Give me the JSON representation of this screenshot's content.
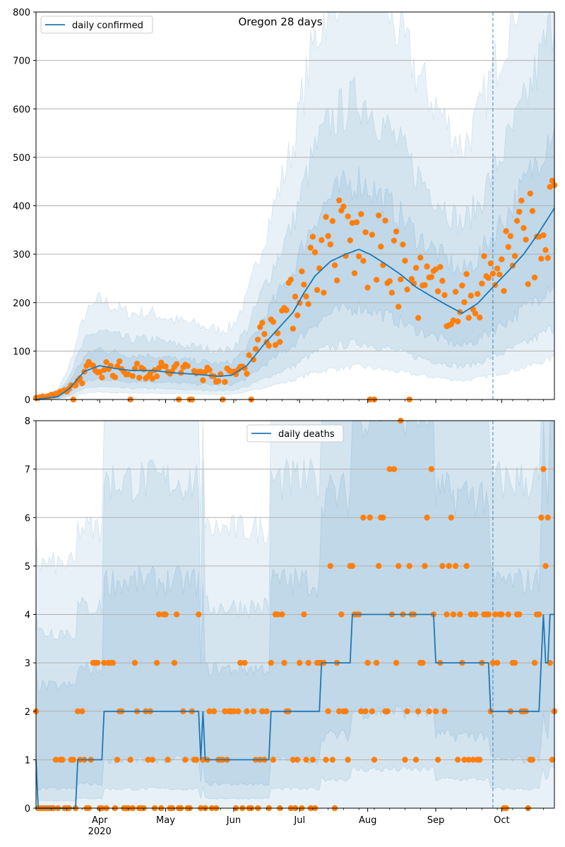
{
  "chart_data": [
    {
      "type": "line",
      "title": "Oregon 28 days",
      "legend": {
        "labels": [
          "daily confirmed"
        ],
        "placement": "upper-left"
      },
      "colors": {
        "line": "#1f77b4",
        "points": "#ff7f0e",
        "band": "#1f77b4"
      },
      "x_range": [
        "2020-03-03",
        "2020-10-25"
      ],
      "ylim": [
        0,
        800
      ],
      "y_ticks": [
        0,
        100,
        200,
        300,
        400,
        500,
        600,
        700,
        800
      ],
      "grid": true,
      "vline_date": "2020-09-27",
      "line_anchors": [
        [
          "2020-03-03",
          0
        ],
        [
          "2020-03-13",
          6
        ],
        [
          "2020-03-18",
          22
        ],
        [
          "2020-03-25",
          58
        ],
        [
          "2020-04-01",
          70
        ],
        [
          "2020-04-08",
          64
        ],
        [
          "2020-04-15",
          60
        ],
        [
          "2020-04-25",
          60
        ],
        [
          "2020-05-05",
          55
        ],
        [
          "2020-05-15",
          52
        ],
        [
          "2020-05-25",
          48
        ],
        [
          "2020-05-31",
          50
        ],
        [
          "2020-06-07",
          70
        ],
        [
          "2020-06-15",
          115
        ],
        [
          "2020-06-22",
          150
        ],
        [
          "2020-06-28",
          180
        ],
        [
          "2020-07-03",
          220
        ],
        [
          "2020-07-08",
          255
        ],
        [
          "2020-07-15",
          285
        ],
        [
          "2020-07-22",
          300
        ],
        [
          "2020-07-28",
          310
        ],
        [
          "2020-08-02",
          300
        ],
        [
          "2020-08-09",
          280
        ],
        [
          "2020-08-16",
          258
        ],
        [
          "2020-08-23",
          232
        ],
        [
          "2020-08-30",
          213
        ],
        [
          "2020-09-06",
          195
        ],
        [
          "2020-09-13",
          178
        ],
        [
          "2020-09-20",
          198
        ],
        [
          "2020-09-27",
          232
        ],
        [
          "2020-10-04",
          265
        ],
        [
          "2020-10-11",
          300
        ],
        [
          "2020-10-18",
          345
        ],
        [
          "2020-10-25",
          395
        ]
      ],
      "points_anchors": [
        [
          "2020-03-03",
          3
        ],
        [
          "2020-03-13",
          10
        ],
        [
          "2020-03-20",
          28
        ],
        [
          "2020-03-27",
          62
        ],
        [
          "2020-04-05",
          65
        ],
        [
          "2020-04-15",
          58
        ],
        [
          "2020-04-25",
          60
        ],
        [
          "2020-05-05",
          62
        ],
        [
          "2020-05-15",
          58
        ],
        [
          "2020-05-25",
          50
        ],
        [
          "2020-05-31",
          50
        ],
        [
          "2020-06-07",
          75
        ],
        [
          "2020-06-15",
          140
        ],
        [
          "2020-06-22",
          165
        ],
        [
          "2020-06-28",
          200
        ],
        [
          "2020-07-03",
          260
        ],
        [
          "2020-07-08",
          285
        ],
        [
          "2020-07-15",
          320
        ],
        [
          "2020-07-22",
          330
        ],
        [
          "2020-07-28",
          320
        ],
        [
          "2020-08-02",
          300
        ],
        [
          "2020-08-09",
          290
        ],
        [
          "2020-08-16",
          260
        ],
        [
          "2020-08-23",
          240
        ],
        [
          "2020-08-30",
          225
        ],
        [
          "2020-09-06",
          210
        ],
        [
          "2020-09-13",
          190
        ],
        [
          "2020-09-20",
          230
        ],
        [
          "2020-09-27",
          260
        ],
        [
          "2020-10-04",
          300
        ],
        [
          "2020-10-11",
          335
        ],
        [
          "2020-10-18",
          350
        ],
        [
          "2020-10-25",
          360
        ]
      ],
      "points_spread": 0.3,
      "bands": [
        {
          "lo": 0.62,
          "hi": 1.45
        },
        {
          "lo": 0.38,
          "hi": 2.0
        },
        {
          "lo": 0.22,
          "hi": 2.9
        }
      ]
    },
    {
      "type": "line",
      "title": "",
      "legend": {
        "labels": [
          "daily deaths"
        ],
        "placement": "upper-center"
      },
      "colors": {
        "line": "#1f77b4",
        "points": "#ff7f0e",
        "band": "#1f77b4"
      },
      "x_range": [
        "2020-03-03",
        "2020-10-25"
      ],
      "ylim": [
        0,
        8
      ],
      "y_ticks": [
        0,
        1,
        2,
        3,
        4,
        5,
        6,
        7,
        8
      ],
      "grid": true,
      "vline_date": "2020-09-27",
      "x_tick_labels": [
        {
          "date": "2020-04-01",
          "label": "Apr",
          "sublabel": "2020"
        },
        {
          "date": "2020-05-01",
          "label": "May"
        },
        {
          "date": "2020-06-01",
          "label": "Jun"
        },
        {
          "date": "2020-07-01",
          "label": "Jul"
        },
        {
          "date": "2020-08-01",
          "label": "Aug"
        },
        {
          "date": "2020-09-01",
          "label": "Sep"
        },
        {
          "date": "2020-10-01",
          "label": "Oct"
        }
      ],
      "line_steps": [
        [
          "2020-03-03",
          1
        ],
        [
          "2020-03-04",
          0
        ],
        [
          "2020-03-22",
          1
        ],
        [
          "2020-04-03",
          2
        ],
        [
          "2020-05-17",
          1
        ],
        [
          "2020-05-18",
          2
        ],
        [
          "2020-05-19",
          1
        ],
        [
          "2020-06-18",
          2
        ],
        [
          "2020-07-11",
          3
        ],
        [
          "2020-07-25",
          4
        ],
        [
          "2020-09-01",
          3
        ],
        [
          "2020-09-26",
          2
        ],
        [
          "2020-09-27",
          2
        ],
        [
          "2020-10-19",
          3
        ],
        [
          "2020-10-20",
          4
        ],
        [
          "2020-10-21",
          3
        ],
        [
          "2020-10-23",
          4
        ]
      ],
      "points_spread": 0.6,
      "bands": [
        {
          "lo": 0.5,
          "hi": 1.8
        },
        {
          "lo": 0.2,
          "hi": 2.6
        },
        {
          "lo": 0.0,
          "hi": 3.6
        }
      ]
    }
  ]
}
